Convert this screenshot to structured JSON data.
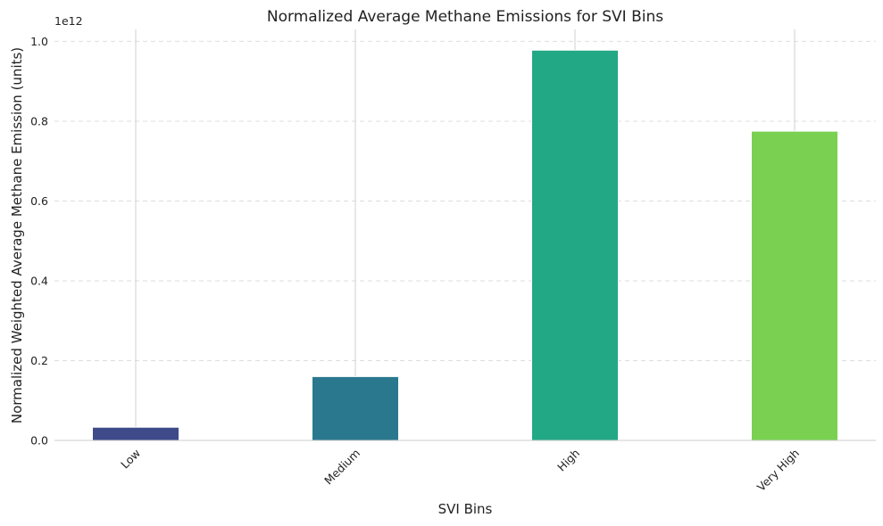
{
  "chart_data": {
    "type": "bar",
    "title": "Normalized Average Methane Emissions for SVI Bins",
    "xlabel": "SVI Bins",
    "ylabel": "Normalized Weighted Average Methane Emission (units)",
    "y_offset_label": "1e12",
    "y_scale": 1000000000000,
    "categories": [
      "Low",
      "Medium",
      "High",
      "Very High"
    ],
    "values": [
      33000000000,
      160000000000,
      978000000000,
      775000000000
    ],
    "colors": [
      "#3e4a89",
      "#2a788e",
      "#22a884",
      "#7ad151"
    ],
    "ylim": [
      0,
      1030000000000
    ],
    "yticks": [
      0,
      200000000000,
      400000000000,
      600000000000,
      800000000000,
      1000000000000
    ],
    "ytick_labels": [
      "0.0",
      "0.2",
      "0.4",
      "0.6",
      "0.8",
      "1.0"
    ],
    "grid": "horizontal dashed",
    "legend": "none"
  }
}
